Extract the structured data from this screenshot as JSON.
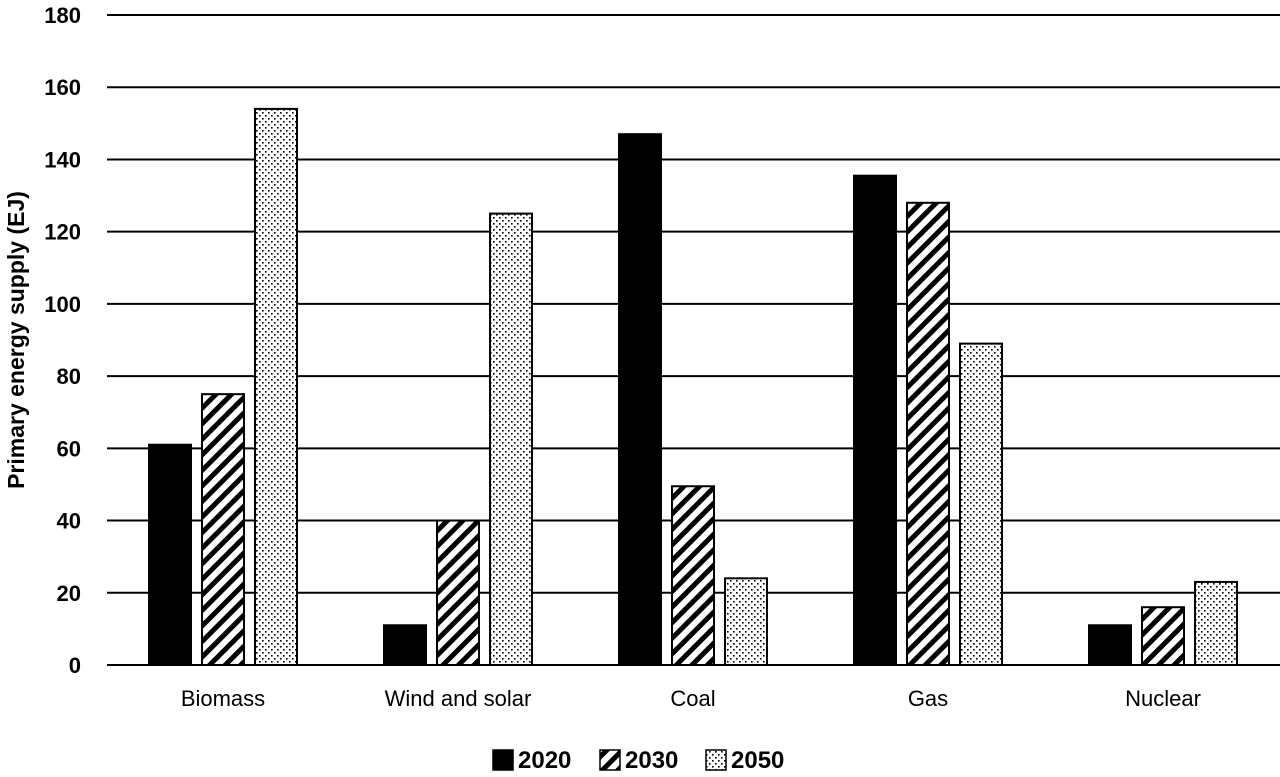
{
  "chart_data": {
    "type": "bar",
    "title": "",
    "xlabel": "",
    "ylabel": "Primary energy supply (EJ)",
    "ylim": [
      0,
      180
    ],
    "yticks": [
      0,
      20,
      40,
      60,
      80,
      100,
      120,
      140,
      160,
      180
    ],
    "grid": true,
    "legend_position": "bottom",
    "categories": [
      "Biomass",
      "Wind and solar",
      "Coal",
      "Gas",
      "Nuclear"
    ],
    "series": [
      {
        "name": "2020",
        "pattern": "solid",
        "values": [
          61,
          11,
          147,
          135.5,
          11
        ]
      },
      {
        "name": "2030",
        "pattern": "diagonal-hatch",
        "values": [
          75,
          40,
          49.5,
          128,
          16
        ]
      },
      {
        "name": "2050",
        "pattern": "dots",
        "values": [
          154,
          125,
          24,
          89,
          23
        ]
      }
    ],
    "colors": {
      "ink": "#000000",
      "background": "#ffffff"
    }
  }
}
